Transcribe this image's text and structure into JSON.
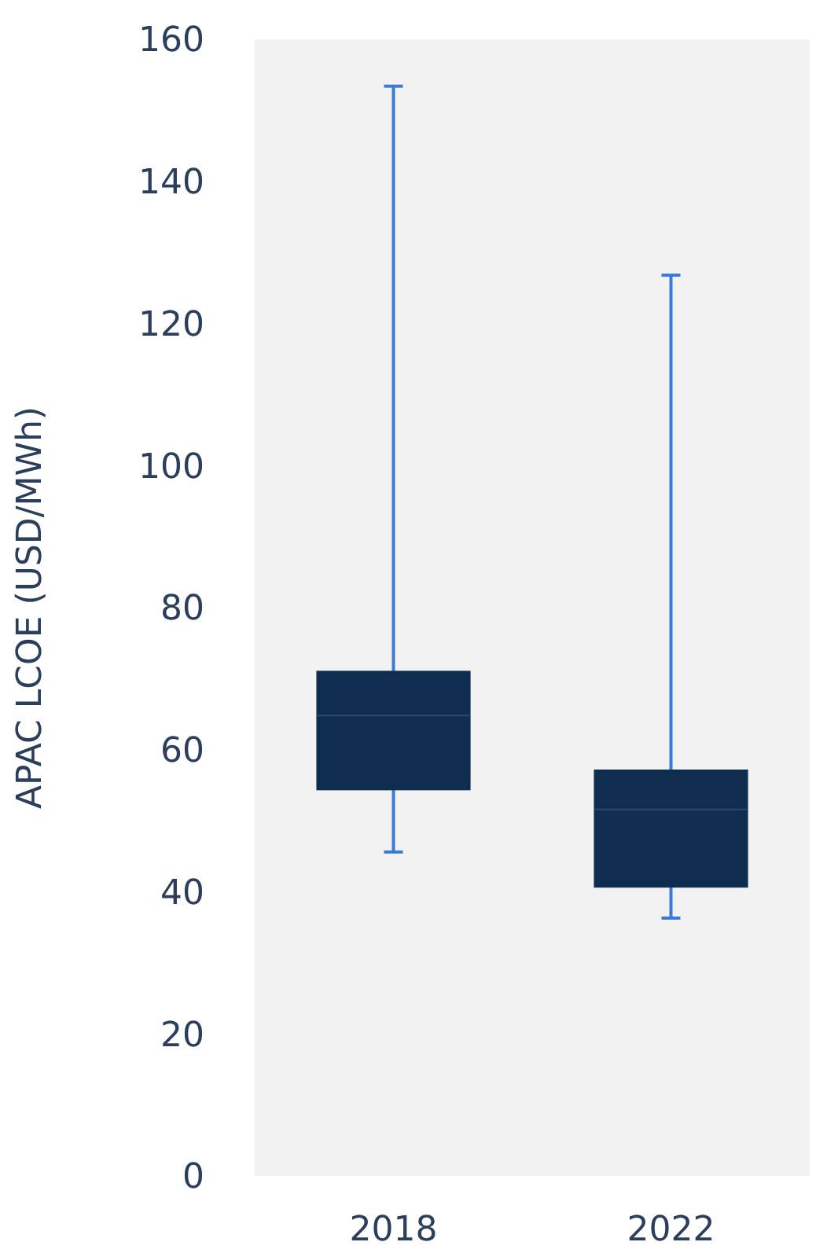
{
  "chart_data": {
    "type": "box",
    "ylabel": "APAC LCOE (USD/MWh)",
    "categories": [
      "2018",
      "2022"
    ],
    "boxes": [
      {
        "low": 45.6,
        "q1": 54.4,
        "median": 64.8,
        "q3": 71,
        "high": 153.4
      },
      {
        "low": 36.3,
        "q1": 40.7,
        "median": 51.6,
        "q3": 57.1,
        "high": 126.8
      }
    ],
    "color": "#0f2d4f",
    "ylim": [
      0,
      160
    ],
    "yticks": [
      0,
      20,
      40,
      60,
      80,
      100,
      120,
      140,
      160
    ],
    "grid": false
  }
}
